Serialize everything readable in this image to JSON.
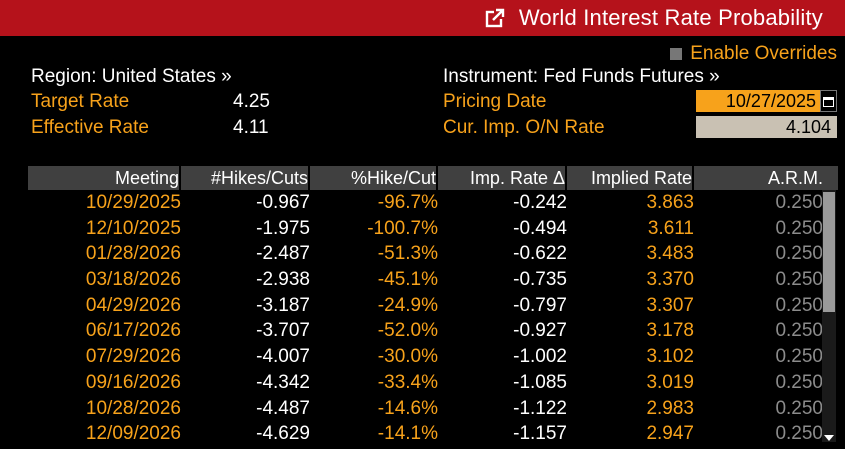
{
  "header": {
    "title": "World Interest Rate Probability",
    "icon": "external-link-icon"
  },
  "overrides": {
    "label": "Enable Overrides"
  },
  "left": {
    "region": "Region: United States »",
    "target_label": "Target Rate",
    "target_value": "4.25",
    "effective_label": "Effective Rate",
    "effective_value": "4.11"
  },
  "right": {
    "instrument": "Instrument: Fed Funds Futures »",
    "pricing_label": "Pricing Date",
    "pricing_value": "10/27/2025",
    "cur_label": "Cur. Imp. O/N Rate",
    "cur_value": "4.104"
  },
  "table": {
    "headers": [
      "Meeting",
      "#Hikes/Cuts",
      "%Hike/Cut",
      "Imp. Rate Δ",
      "Implied Rate",
      "A.R.M."
    ],
    "rows": [
      [
        "10/29/2025",
        "-0.967",
        "-96.7%",
        "-0.242",
        "3.863",
        "0.250"
      ],
      [
        "12/10/2025",
        "-1.975",
        "-100.7%",
        "-0.494",
        "3.611",
        "0.250"
      ],
      [
        "01/28/2026",
        "-2.487",
        "-51.3%",
        "-0.622",
        "3.483",
        "0.250"
      ],
      [
        "03/18/2026",
        "-2.938",
        "-45.1%",
        "-0.735",
        "3.370",
        "0.250"
      ],
      [
        "04/29/2026",
        "-3.187",
        "-24.9%",
        "-0.797",
        "3.307",
        "0.250"
      ],
      [
        "06/17/2026",
        "-3.707",
        "-52.0%",
        "-0.927",
        "3.178",
        "0.250"
      ],
      [
        "07/29/2026",
        "-4.007",
        "-30.0%",
        "-1.002",
        "3.102",
        "0.250"
      ],
      [
        "09/16/2026",
        "-4.342",
        "-33.4%",
        "-1.085",
        "3.019",
        "0.250"
      ],
      [
        "10/28/2026",
        "-4.487",
        "-14.6%",
        "-1.122",
        "2.983",
        "0.250"
      ],
      [
        "12/09/2026",
        "-4.629",
        "-14.1%",
        "-1.157",
        "2.947",
        "0.250"
      ]
    ]
  },
  "colors": {
    "accent": "#f7a21b",
    "header_red": "#b5121b",
    "background": "#000000"
  }
}
